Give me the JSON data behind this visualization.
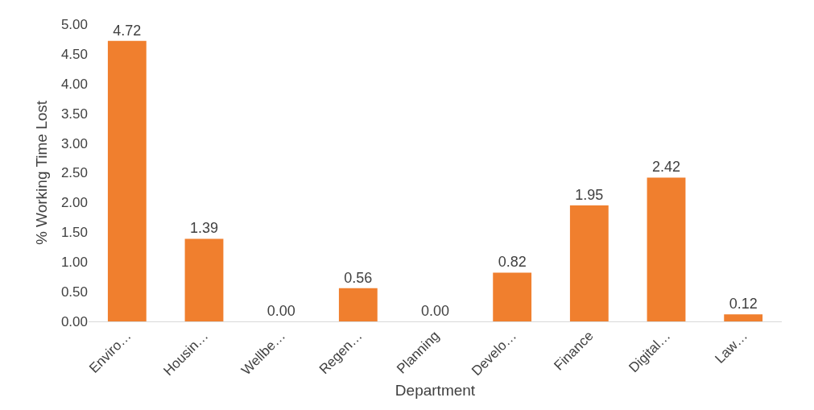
{
  "chart_data": {
    "type": "bar",
    "xlabel": "Department",
    "ylabel": "% Working Time Lost",
    "categories": [
      "Enviro…",
      "Housin…",
      "Wellbe…",
      "Regen…",
      "Planning",
      "Develo…",
      "Finance",
      "Digital…",
      "Law…"
    ],
    "values": [
      4.72,
      1.39,
      0.0,
      0.56,
      0.0,
      0.82,
      1.95,
      2.42,
      0.12
    ],
    "value_labels": [
      "4.72",
      "1.39",
      "0.00",
      "0.56",
      "0.00",
      "0.82",
      "1.95",
      "2.42",
      "0.12"
    ],
    "color": "#f07f2e",
    "ylim": [
      0,
      5
    ],
    "yticks": [
      {
        "value": 0,
        "label": "0.00"
      },
      {
        "value": 0.5,
        "label": "0.50"
      },
      {
        "value": 1,
        "label": "1.00"
      },
      {
        "value": 1.5,
        "label": "1.50"
      },
      {
        "value": 2,
        "label": "2.00"
      },
      {
        "value": 2.5,
        "label": "2.50"
      },
      {
        "value": 3,
        "label": "3.00"
      },
      {
        "value": 3.5,
        "label": "3.50"
      },
      {
        "value": 4,
        "label": "4.00"
      },
      {
        "value": 4.5,
        "label": "4.50"
      },
      {
        "value": 5,
        "label": "5.00"
      }
    ],
    "grid": false
  }
}
